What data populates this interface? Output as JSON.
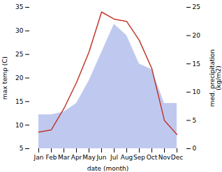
{
  "chart_data": {
    "type": "line",
    "categories": [
      "Jan",
      "Feb",
      "Mar",
      "Apr",
      "May",
      "Jun",
      "Jul",
      "Aug",
      "Sep",
      "Oct",
      "Nov",
      "Dec"
    ],
    "xlabel": "date (month)",
    "ylabel": "max temp (C)",
    "y2label": "med. precipitation\n(kg/m2)",
    "series": [
      {
        "type": "area",
        "axis": "y2",
        "color": "#bfc9f0",
        "values": [
          6.0,
          6.0,
          6.5,
          8.0,
          12.0,
          17.0,
          22.0,
          20.0,
          15.0,
          14.0,
          8.0,
          8.0
        ]
      },
      {
        "type": "line",
        "color": "#c0392b",
        "values": [
          8.5,
          9.0,
          13.5,
          19.0,
          25.5,
          34.0,
          32.5,
          32.0,
          28.0,
          22.0,
          11.0,
          8.0
        ]
      }
    ],
    "ylim": [
      5,
      35
    ],
    "yticks": [
      5,
      10,
      15,
      20,
      25,
      30,
      35
    ],
    "y2lim": [
      0,
      25
    ],
    "y2ticks": [
      0,
      5,
      10,
      15,
      20,
      25
    ],
    "grid": false
  }
}
